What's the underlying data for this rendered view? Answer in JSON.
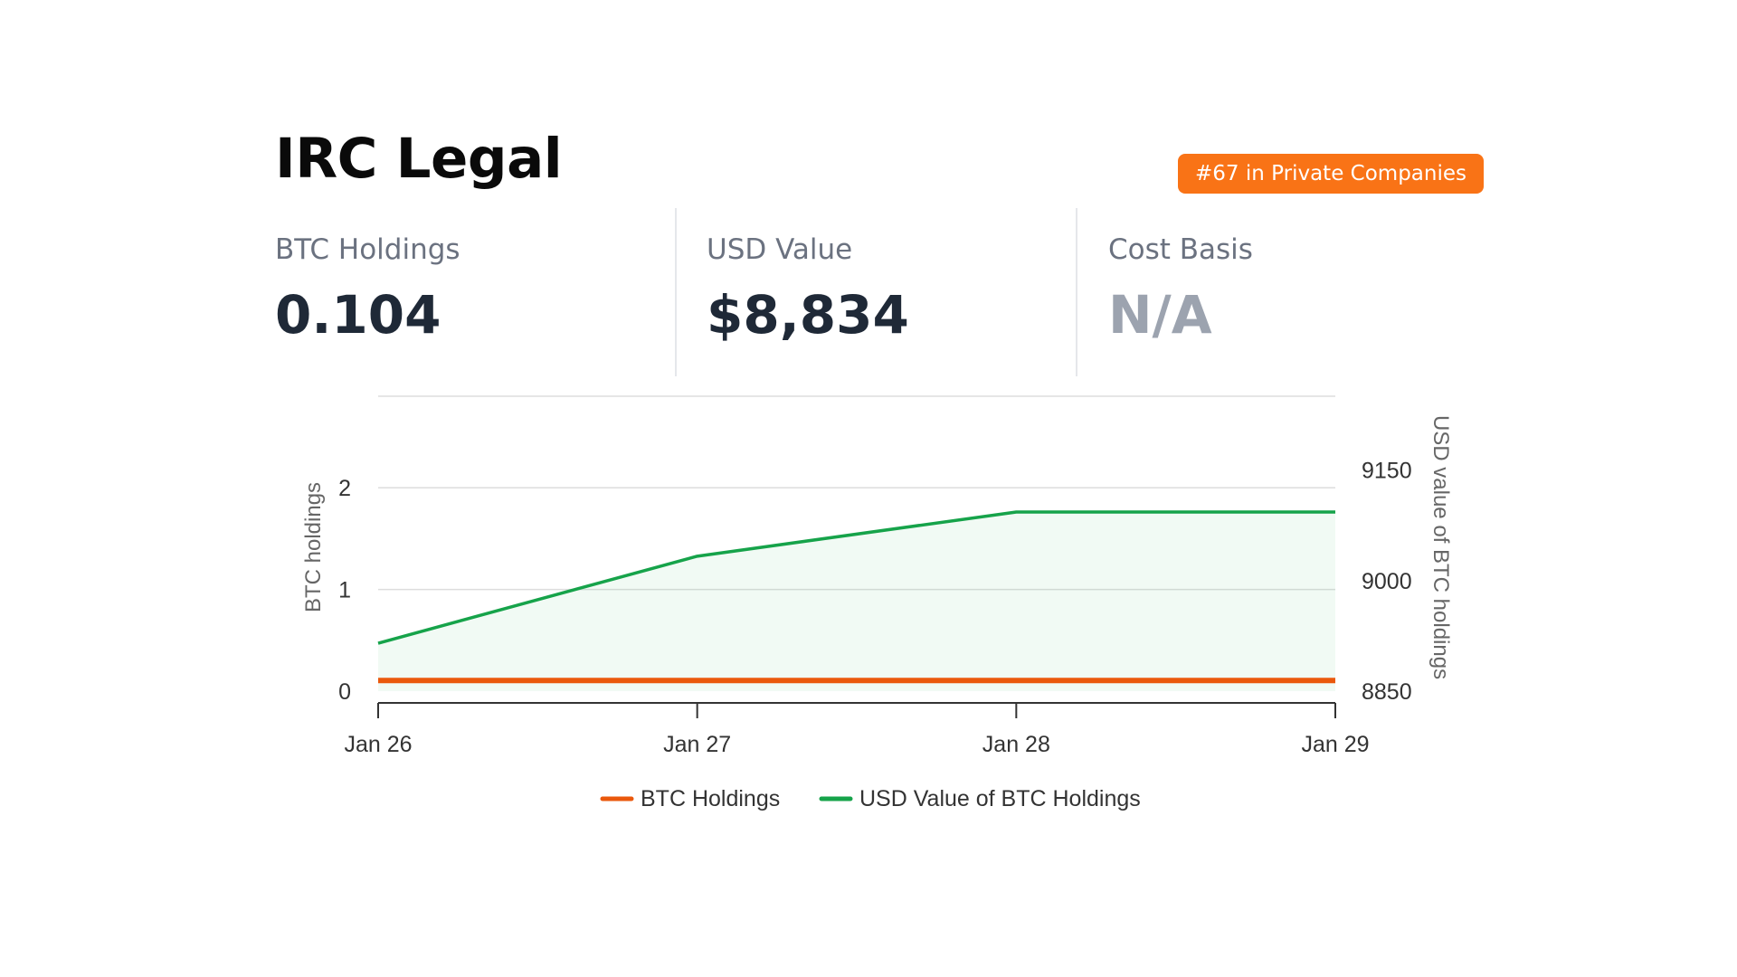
{
  "company": {
    "name": "IRC Legal",
    "rank_badge": "#67 in Private Companies"
  },
  "stats": [
    {
      "label": "BTC Holdings",
      "value": "0.104"
    },
    {
      "label": "USD Value",
      "value": "$8,834"
    },
    {
      "label": "Cost Basis",
      "value": "N/A"
    }
  ],
  "colors": {
    "accent": "#f97316",
    "btc_series": "#ea580c",
    "usd_series": "#16a34a"
  },
  "chart_data": {
    "type": "line",
    "x": [
      "Jan 26",
      "Jan 27",
      "Jan 28",
      "Jan 29"
    ],
    "series": [
      {
        "name": "BTC Holdings",
        "axis": "left",
        "values": [
          0.104,
          0.104,
          0.104,
          0.104
        ],
        "color": "#ea580c"
      },
      {
        "name": "USD Value of BTC Holdings",
        "axis": "right",
        "values": [
          8915,
          9033,
          9093,
          9093
        ],
        "color": "#16a34a",
        "area": true
      }
    ],
    "ylabel": "BTC holdings",
    "y2label": "USD value of BTC holdings",
    "ylim": [
      0,
      2.9
    ],
    "y2lim": [
      8850,
      9250
    ],
    "yticks": [
      0,
      1,
      2
    ],
    "y2ticks": [
      8850,
      9000,
      9150
    ],
    "grid": true,
    "legend_position": "bottom"
  }
}
